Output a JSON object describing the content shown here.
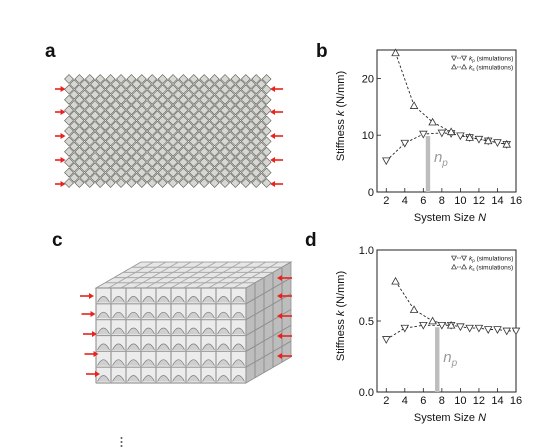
{
  "figure": {
    "panel_labels": [
      "a",
      "b",
      "c",
      "d"
    ]
  },
  "colors": {
    "tile_fill": "#d8d8d2",
    "tile_stroke": "#555555",
    "arrow": "#e8231e",
    "marker_edge": "#333333",
    "fit_line": "#222222",
    "np_bar": "#bdbdbd",
    "np_text": "#9a9a9a",
    "frame_light": "#d4d4d4",
    "frame_dark": "#8f8f8f"
  },
  "chart_data": [
    {
      "panel": "b",
      "type": "scatter",
      "ylabel_pre": "Stiffness ",
      "ylabel_var": "k",
      "ylabel_post": " (N/mm)",
      "xlabel_pre": "System Size ",
      "xlabel_var": "N",
      "x_ticks": [
        2,
        4,
        6,
        8,
        10,
        12,
        14,
        16
      ],
      "y_ticks": [
        0,
        10,
        20
      ],
      "xlim": [
        1,
        16
      ],
      "ylim": [
        0,
        25
      ],
      "legend_position": "top-right",
      "series": [
        {
          "marker": "triangle-down",
          "legend_sym": "k",
          "legend_sub": "p",
          "legend_rest": " (simulations)",
          "x": [
            2,
            4,
            6,
            8,
            9,
            10,
            11,
            12,
            13,
            14,
            15
          ],
          "y": [
            5.5,
            8.6,
            10.2,
            10.4,
            10.3,
            9.9,
            9.6,
            9.3,
            9.0,
            8.7,
            8.4
          ]
        },
        {
          "marker": "triangle-up",
          "legend_sym": "k",
          "legend_sub": "s",
          "legend_rest": " (simulations)",
          "x": [
            3,
            5,
            7,
            9,
            11,
            13,
            15
          ],
          "y": [
            24.5,
            15.2,
            12.3,
            10.6,
            9.6,
            9.0,
            8.4
          ]
        }
      ],
      "np_marker": {
        "x": 6.5,
        "label_var": "n",
        "label_sub": "p"
      }
    },
    {
      "panel": "d",
      "type": "scatter",
      "ylabel_pre": "Stiffness ",
      "ylabel_var": "k",
      "ylabel_post": " (N/mm)",
      "xlabel_pre": "System Size ",
      "xlabel_var": "N",
      "x_ticks": [
        2,
        4,
        6,
        8,
        10,
        12,
        14,
        16
      ],
      "y_ticks": [
        0.0,
        0.5,
        1.0
      ],
      "y_tick_labels": [
        "0.0",
        "0.5",
        "1.0"
      ],
      "xlim": [
        1,
        16
      ],
      "ylim": [
        0,
        1
      ],
      "legend_position": "top-right",
      "series": [
        {
          "marker": "triangle-down",
          "legend_sym": "k",
          "legend_sub": "p",
          "legend_rest": " (simulations)",
          "x": [
            2,
            4,
            6,
            8,
            9,
            10,
            11,
            12,
            13,
            14,
            15,
            16
          ],
          "y": [
            0.37,
            0.45,
            0.47,
            0.47,
            0.47,
            0.46,
            0.45,
            0.45,
            0.44,
            0.44,
            0.43,
            0.43
          ]
        },
        {
          "marker": "triangle-up",
          "legend_sym": "k",
          "legend_sub": "s",
          "legend_rest": " (simulations)",
          "x": [
            3,
            5,
            7,
            9
          ],
          "y": [
            0.78,
            0.58,
            0.5,
            0.47
          ]
        }
      ],
      "np_marker": {
        "x": 7.5,
        "label_var": "n",
        "label_sub": "p"
      }
    }
  ]
}
